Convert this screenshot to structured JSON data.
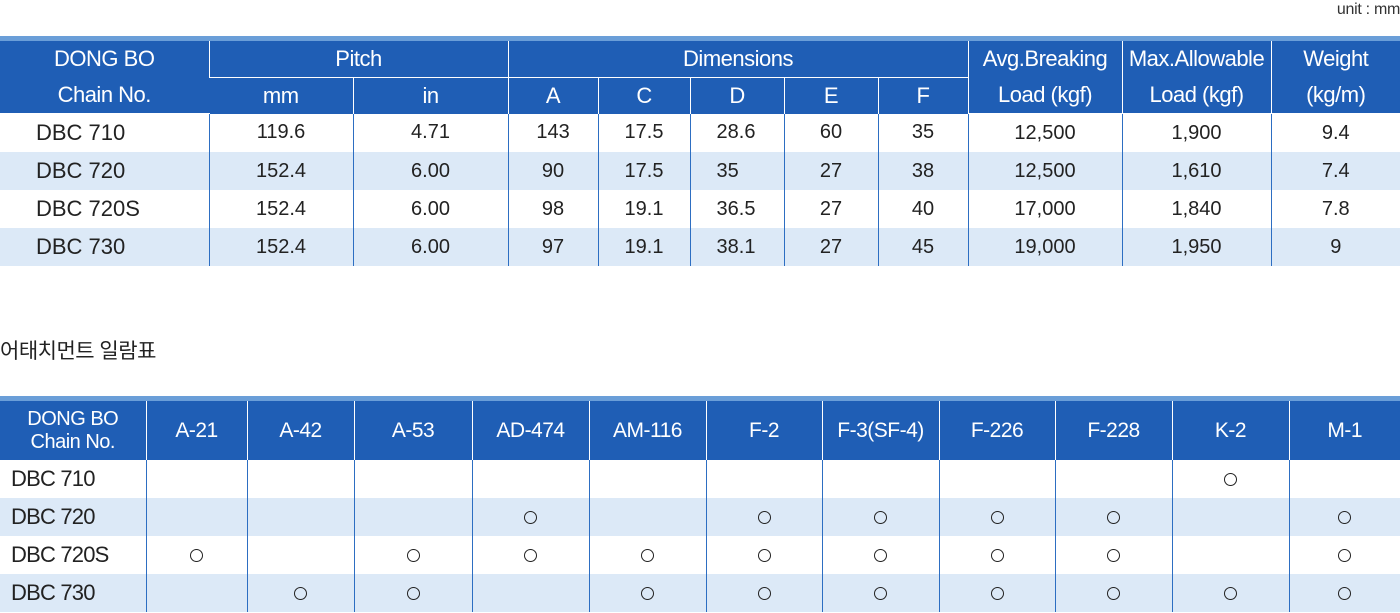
{
  "unit_label": "unit : mm",
  "spec_table": {
    "header_chain_line1": "DONG BO",
    "header_chain_line2": "Chain No.",
    "header_pitch": "Pitch",
    "header_mm": "mm",
    "header_in": "in",
    "header_dimensions": "Dimensions",
    "header_a": "A",
    "header_c": "C",
    "header_d": "D",
    "header_e": "E",
    "header_f": "F",
    "header_avg_line1": "Avg.Breaking",
    "header_avg_line2": "Load (kgf)",
    "header_max_line1": "Max.Allowable",
    "header_max_line2": "Load (kgf)",
    "header_weight_line1": "Weight",
    "header_weight_line2": "(kg/m)",
    "rows": [
      {
        "chain": "DBC  710",
        "mm": "119.6",
        "in": "4.71",
        "a": "143",
        "c": "17.5",
        "d": "28.6",
        "e": "60",
        "f": "35",
        "avg": "12,500",
        "max": "1,900",
        "weight": "9.4"
      },
      {
        "chain": "DBC  720",
        "mm": "152.4",
        "in": "6.00",
        "a": "90",
        "c": "17.5",
        "d": "35",
        "e": "27",
        "f": "38",
        "avg": "12,500",
        "max": "1,610",
        "weight": "7.4"
      },
      {
        "chain": "DBC  720S",
        "mm": "152.4",
        "in": "6.00",
        "a": "98",
        "c": "19.1",
        "d": "36.5",
        "e": "27",
        "f": "40",
        "avg": "17,000",
        "max": "1,840",
        "weight": "7.8"
      },
      {
        "chain": "DBC  730",
        "mm": "152.4",
        "in": "6.00",
        "a": "97",
        "c": "19.1",
        "d": "38.1",
        "e": "27",
        "f": "45",
        "avg": "19,000",
        "max": "1,950",
        "weight": "9"
      }
    ]
  },
  "attachment_title": "어태치먼트 일람표",
  "attachment_table": {
    "header_chain_line1": "DONG BO",
    "header_chain_line2": "Chain No.",
    "columns": [
      "A-21",
      "A-42",
      "A-53",
      "AD-474",
      "AM-116",
      "F-2",
      "F-3(SF-4)",
      "F-226",
      "F-228",
      "K-2",
      "M-1"
    ],
    "mark_symbol": "○",
    "rows": [
      {
        "chain": "DBC 710",
        "marks": [
          false,
          false,
          false,
          false,
          false,
          false,
          false,
          false,
          false,
          true,
          false
        ]
      },
      {
        "chain": "DBC 720",
        "marks": [
          false,
          false,
          false,
          true,
          false,
          true,
          true,
          true,
          true,
          false,
          true
        ]
      },
      {
        "chain": "DBC 720S",
        "marks": [
          true,
          false,
          true,
          true,
          true,
          true,
          true,
          true,
          true,
          false,
          true
        ]
      },
      {
        "chain": "DBC 730",
        "marks": [
          false,
          true,
          true,
          false,
          true,
          true,
          true,
          true,
          true,
          true,
          true
        ]
      }
    ]
  }
}
